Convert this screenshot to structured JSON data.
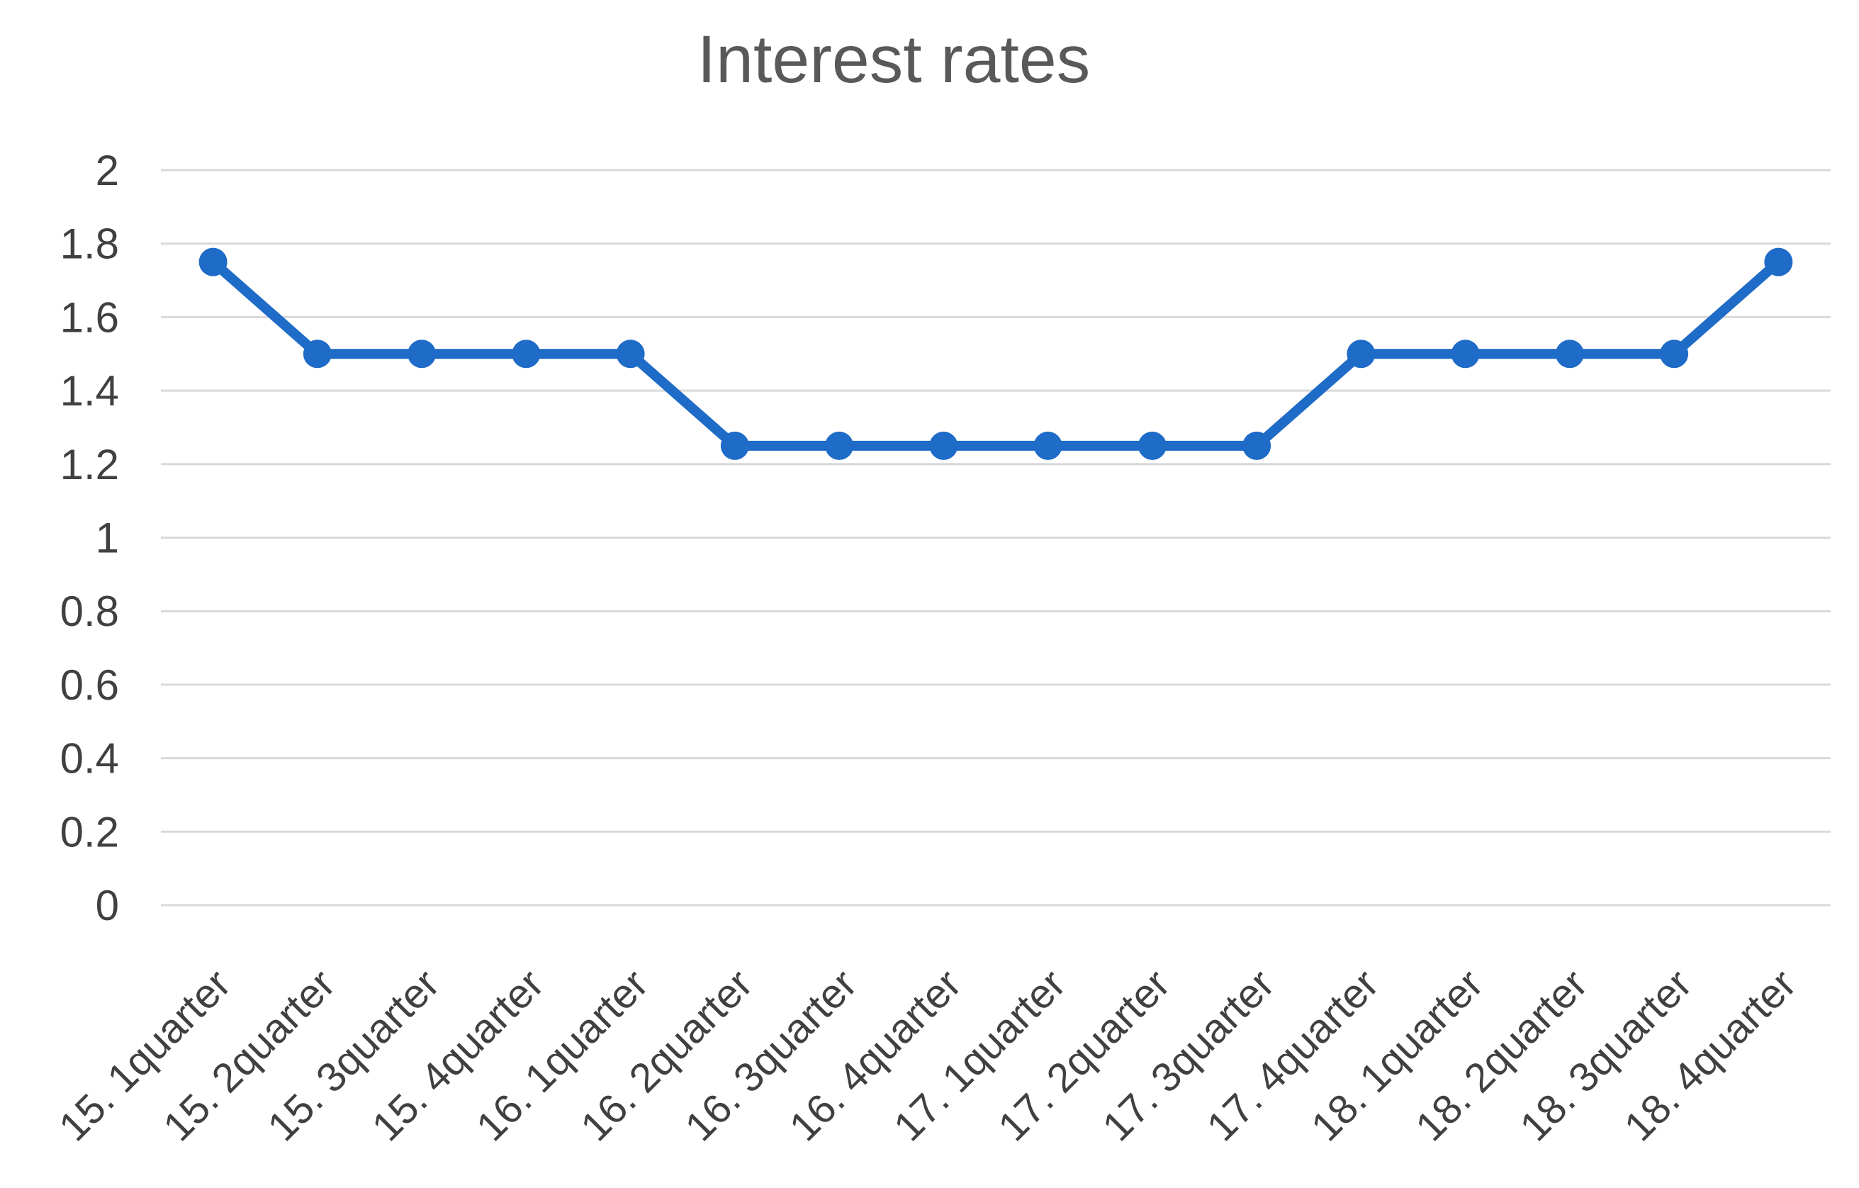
{
  "chart_data": {
    "type": "line",
    "title": "Interest rates",
    "categories": [
      "15. 1quarter",
      "15. 2quarter",
      "15. 3quarter",
      "15. 4quarter",
      "16. 1quarter",
      "16. 2quarter",
      "16. 3quarter",
      "16. 4quarter",
      "17. 1quarter",
      "17. 2quarter",
      "17. 3quarter",
      "17. 4quarter",
      "18. 1quarter",
      "18. 2quarter",
      "18. 3quarter",
      "18. 4quarter"
    ],
    "values": [
      1.75,
      1.5,
      1.5,
      1.5,
      1.5,
      1.25,
      1.25,
      1.25,
      1.25,
      1.25,
      1.25,
      1.5,
      1.5,
      1.5,
      1.5,
      1.75
    ],
    "xlabel": "",
    "ylabel": "",
    "ylim": [
      0,
      2
    ],
    "ytick_step": 0.2,
    "ytick_labels": [
      "0",
      "0.2",
      "0.4",
      "0.6",
      "0.8",
      "1",
      "1.2",
      "1.4",
      "1.6",
      "1.8",
      "2"
    ],
    "x_tick_rotation": 45,
    "grid": true,
    "legend": "none",
    "marker": "circle",
    "colors": {
      "line": "#1E6BC8",
      "marker": "#1E6BC8",
      "grid": "#D9D9D9",
      "title": "#595959",
      "tick_labels": "#404040",
      "background": "#FFFFFF"
    }
  }
}
